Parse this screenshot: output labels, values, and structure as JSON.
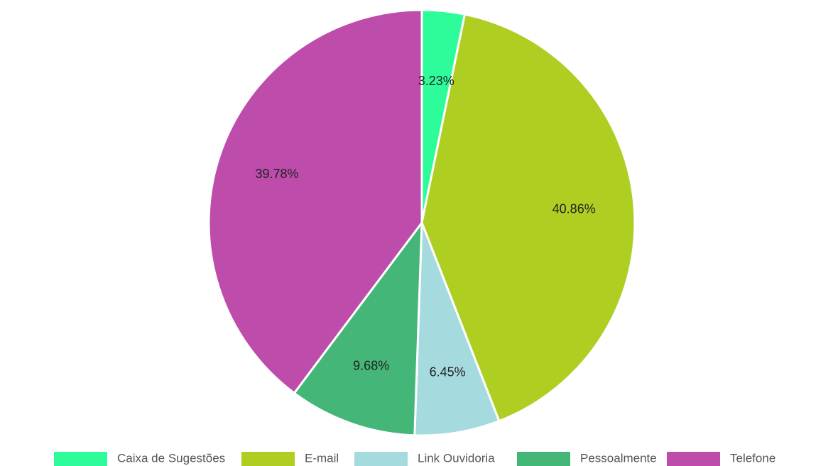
{
  "chart_data": {
    "type": "pie",
    "categories": [
      "Caixa de Sugestões",
      "E-mail",
      "Link Ouvidoria",
      "Pessoalmente",
      "Telefone"
    ],
    "values": [
      3.23,
      40.86,
      6.45,
      9.68,
      39.78
    ],
    "labels": [
      "3.23%",
      "40.86%",
      "6.45%",
      "9.68%",
      "39.78%"
    ],
    "colors": [
      "#2efc9a",
      "#aece22",
      "#a5dbdf",
      "#44b678",
      "#bd4cab"
    ],
    "start_angle": "top",
    "direction": "clockwise",
    "legend_position": "bottom"
  }
}
